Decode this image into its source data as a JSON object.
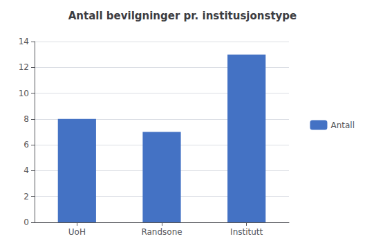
{
  "chart_data": {
    "type": "bar",
    "title": "Antall bevilgninger pr. institusjonstype",
    "categories": [
      "UoH",
      "Randsone",
      "Institutt"
    ],
    "series": [
      {
        "name": "Antall",
        "color": "#4472C4",
        "values": [
          8,
          7,
          13
        ]
      }
    ],
    "ylim": [
      0,
      14
    ],
    "yticks": [
      0,
      2,
      4,
      6,
      8,
      10,
      12,
      14
    ],
    "grid": true,
    "legend": "right"
  }
}
